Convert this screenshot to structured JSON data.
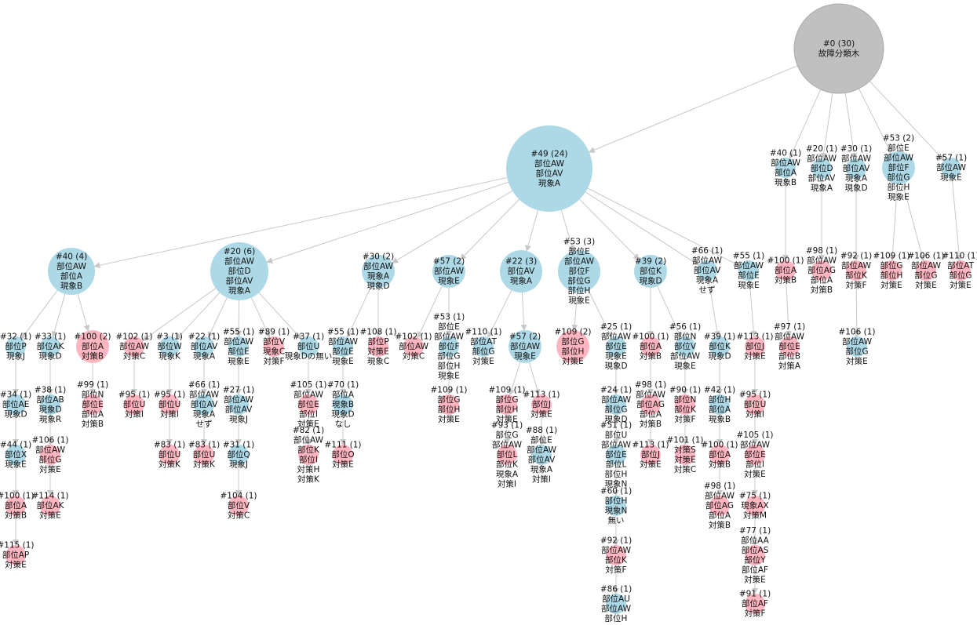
{
  "nodes": [
    {
      "label": [
        "#0 (30)",
        "故障分類木"
      ]
    },
    {
      "label": [
        "#49 (24)",
        "部位AW",
        "部位AV",
        "現象A"
      ]
    },
    {
      "label": [
        "#40 (1)",
        "部位AW",
        "部位A",
        "現象B"
      ]
    },
    {
      "label": [
        "#20 (1)",
        "部位AW",
        "部位D",
        "部位AV",
        "現象A"
      ]
    },
    {
      "label": [
        "#30 (1)",
        "部位AW",
        "部位AV",
        "現象A",
        "現象D"
      ]
    },
    {
      "label": [
        "#53 (2)",
        "部位E",
        "部位AW",
        "部位F",
        "部位G",
        "部位H",
        "現象E"
      ]
    },
    {
      "label": [
        "#57 (1)",
        "部位AW",
        "現象E"
      ]
    },
    {
      "label": [
        "#40 (4)",
        "部位AW",
        "部位A",
        "現象B"
      ]
    },
    {
      "label": [
        "#20 (6)",
        "部位AW",
        "部位D",
        "部位AV",
        "現象A"
      ]
    },
    {
      "label": [
        "#30 (2)",
        "部位AW",
        "現象A",
        "現象D"
      ]
    },
    {
      "label": [
        "#57 (2)",
        "部位AW",
        "現象E"
      ]
    },
    {
      "label": [
        "#22 (3)",
        "部位AV",
        "現象A"
      ]
    },
    {
      "label": [
        "#53 (3)",
        "部位E",
        "部位AW",
        "部位F",
        "部位G",
        "部位H",
        "現象E"
      ]
    },
    {
      "label": [
        "#39 (2)",
        "部位K",
        "現象D"
      ]
    },
    {
      "label": [
        "#66 (1)",
        "部位AW",
        "部位AV",
        "現象A",
        "せず"
      ]
    },
    {
      "label": [
        "#55 (1)",
        "部位AW",
        "部位E",
        "現象E"
      ]
    },
    {
      "label": [
        "#100 (1)",
        "部位A",
        "対策B"
      ]
    },
    {
      "label": [
        "#98 (1)",
        "部位AW",
        "部位AG",
        "部位A",
        "対策B"
      ]
    },
    {
      "label": [
        "#92 (1)",
        "部位AW",
        "部位K",
        "対策F"
      ]
    },
    {
      "label": [
        "#109 (1)",
        "部位G",
        "部位H",
        "対策E"
      ]
    },
    {
      "label": [
        "#106 (1)",
        "部位AW",
        "部位G",
        "対策E"
      ]
    },
    {
      "label": [
        "#110 (1)",
        "部位AT",
        "部位G",
        "対策E"
      ]
    },
    {
      "label": [
        "#32 (1)",
        "部位P",
        "現象J"
      ]
    },
    {
      "label": [
        "#33 (1)",
        "部位AK",
        "現象D"
      ]
    },
    {
      "label": [
        "#100 (2)",
        "部位A",
        "対策B"
      ]
    },
    {
      "label": [
        "#34 (1)",
        "部位AE",
        "現象D"
      ]
    },
    {
      "label": [
        "#44 (1)",
        "部位X",
        "現象E"
      ]
    },
    {
      "label": [
        "#100 (1)",
        "部位A",
        "対策B"
      ]
    },
    {
      "label": [
        "#115 (1)",
        "部位AP",
        "対策E"
      ]
    },
    {
      "label": [
        "#38 (1)",
        "部位AB",
        "現象D",
        "現象R"
      ]
    },
    {
      "label": [
        "#106 (1)",
        "部位AW",
        "部位G",
        "対策E"
      ]
    },
    {
      "label": [
        "#114 (1)",
        "部位AK",
        "対策E"
      ]
    },
    {
      "label": [
        "#99 (1)",
        "部位N",
        "部位E",
        "部位A",
        "対策B"
      ]
    },
    {
      "label": [
        "#102 (1)",
        "部位AW",
        "対策C"
      ]
    },
    {
      "label": [
        "#3 (1)",
        "部位W",
        "現象K"
      ]
    },
    {
      "label": [
        "#22 (1)",
        "部位AV",
        "現象A"
      ]
    },
    {
      "label": [
        "#55 (1)",
        "部位AW",
        "部位E",
        "現象E"
      ]
    },
    {
      "label": [
        "#89 (1)",
        "部位V",
        "現象C",
        "対策F"
      ]
    },
    {
      "label": [
        "#37 (1)",
        "部位U",
        "現象Dの無い"
      ]
    },
    {
      "label": [
        "#95 (1)",
        "部位U",
        "対策I"
      ]
    },
    {
      "label": [
        "#95 (1)",
        "部位U",
        "対策I"
      ]
    },
    {
      "label": [
        "#83 (1)",
        "部位U",
        "対策K"
      ]
    },
    {
      "label": [
        "#66 (1)",
        "部位AW",
        "部位AV",
        "現象A",
        "せず"
      ]
    },
    {
      "label": [
        "#83 (1)",
        "部位U",
        "対策K"
      ]
    },
    {
      "label": [
        "#27 (1)",
        "部位AW",
        "部位AV",
        "現象J"
      ]
    },
    {
      "label": [
        "#31 (1)",
        "部位Q",
        "現象J"
      ]
    },
    {
      "label": [
        "#104 (1)",
        "部位V",
        "対策C"
      ]
    },
    {
      "label": [
        "#105 (1)",
        "部位AW",
        "部位E",
        "部位I",
        "対策E"
      ]
    },
    {
      "label": [
        "#82 (1)",
        "部位AW",
        "部位K",
        "部位I",
        "対策H",
        "対策K"
      ]
    },
    {
      "label": [
        "#55 (1)",
        "部位AW",
        "部位E",
        "現象E"
      ]
    },
    {
      "label": [
        "#108 (1)",
        "部位P",
        "対策E",
        "現象C"
      ]
    },
    {
      "label": [
        "#70 (1)",
        "部位A",
        "現象B",
        "現象D",
        "なし"
      ]
    },
    {
      "label": [
        "#111 (1)",
        "部位O",
        "対策E"
      ]
    },
    {
      "label": [
        "#102 (1)",
        "部位AW",
        "対策C"
      ]
    },
    {
      "label": [
        "#53 (1)",
        "部位E",
        "部位AW",
        "部位F",
        "部位G",
        "部位H",
        "現象E"
      ]
    },
    {
      "label": [
        "#109 (1)",
        "部位G",
        "部位H",
        "対策E"
      ]
    },
    {
      "label": [
        "#110 (1)",
        "部位AT",
        "部位G",
        "対策E"
      ]
    },
    {
      "label": [
        "#57 (2)",
        "部位AW",
        "現象E"
      ]
    },
    {
      "label": [
        "#109 (1)",
        "部位G",
        "部位H",
        "対策E"
      ]
    },
    {
      "label": [
        "#113 (1)",
        "部位J",
        "対策E"
      ]
    },
    {
      "label": [
        "#93 (1)",
        "部位G",
        "部位AW",
        "部位L",
        "部位K",
        "現象A",
        "対策I"
      ]
    },
    {
      "label": [
        "#88 (1)",
        "部位E",
        "部位AW",
        "部位AV",
        "現象A",
        "対策I"
      ]
    },
    {
      "label": [
        "#109 (2)",
        "部位G",
        "部位H",
        "対策E"
      ]
    },
    {
      "label": [
        "#25 (1)",
        "部位AW",
        "部位E",
        "現象E",
        "現象D"
      ]
    },
    {
      "label": [
        "#24 (1)",
        "部位AW",
        "部位G",
        "現象D"
      ]
    },
    {
      "label": [
        "#51 (1)",
        "部位U",
        "部位AW",
        "部位E",
        "部位L",
        "部位H",
        "現象N"
      ]
    },
    {
      "label": [
        "#60 (1)",
        "部位H",
        "現象N",
        "無い"
      ]
    },
    {
      "label": [
        "#92 (1)",
        "部位AW",
        "部位K",
        "対策F"
      ]
    },
    {
      "label": [
        "#86 (1)",
        "部位AU",
        "部位AW",
        "部位H"
      ]
    },
    {
      "label": [
        "#100 (1)",
        "部位A",
        "対策B"
      ]
    },
    {
      "label": [
        "#56 (1)",
        "部位N",
        "部位V",
        "部位AW",
        "現象E"
      ]
    },
    {
      "label": [
        "#98 (1)",
        "部位AW",
        "部位AG",
        "部位A",
        "対策B"
      ]
    },
    {
      "label": [
        "#113 (1)",
        "部位J",
        "対策E"
      ]
    },
    {
      "label": [
        "#90 (1)",
        "部位N",
        "部位K",
        "対策F"
      ]
    },
    {
      "label": [
        "#101 (1)",
        "対策S",
        "対策E",
        "対策C"
      ]
    },
    {
      "label": [
        "#39 (1)",
        "部位K",
        "現象D"
      ]
    },
    {
      "label": [
        "#42 (1)",
        "部位H",
        "部位A",
        "現象B"
      ]
    },
    {
      "label": [
        "#100 (1)",
        "部位A",
        "対策B"
      ]
    },
    {
      "label": [
        "#98 (1)",
        "部位AW",
        "部位AG",
        "部位A",
        "対策B"
      ]
    },
    {
      "label": [
        "#113 (1)",
        "部位J",
        "対策E"
      ]
    },
    {
      "label": [
        "#95 (1)",
        "部位U",
        "対策I"
      ]
    },
    {
      "label": [
        "#105 (1)",
        "部位AW",
        "部位E",
        "部位I",
        "対策E"
      ]
    },
    {
      "label": [
        "#75 (1)",
        "現象AX",
        "対策M"
      ]
    },
    {
      "label": [
        "#77 (1)",
        "部位AA",
        "部位AS",
        "部位Y",
        "部位AF",
        "対策E"
      ]
    },
    {
      "label": [
        "#91 (1)",
        "部位AF",
        "対策F"
      ]
    },
    {
      "label": [
        "#97 (1)",
        "部位AW",
        "部位E",
        "部位B",
        "対策A"
      ]
    },
    {
      "label": [
        "#106 (1)",
        "部位AW",
        "部位G",
        "対策E"
      ]
    }
  ]
}
